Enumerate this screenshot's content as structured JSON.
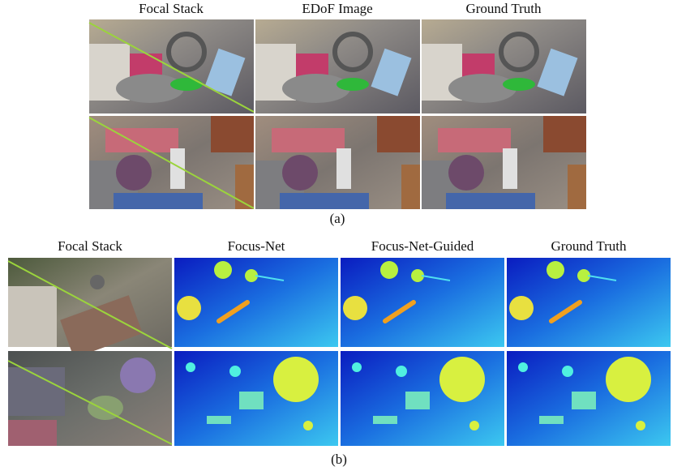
{
  "panel_a": {
    "columns": [
      "Focal Stack",
      "EDoF Image",
      "Ground Truth"
    ],
    "label": "(a)"
  },
  "panel_b": {
    "columns": [
      "Focal Stack",
      "Focus-Net",
      "Focus-Net-Guided",
      "Ground Truth"
    ],
    "label": "(b)"
  }
}
